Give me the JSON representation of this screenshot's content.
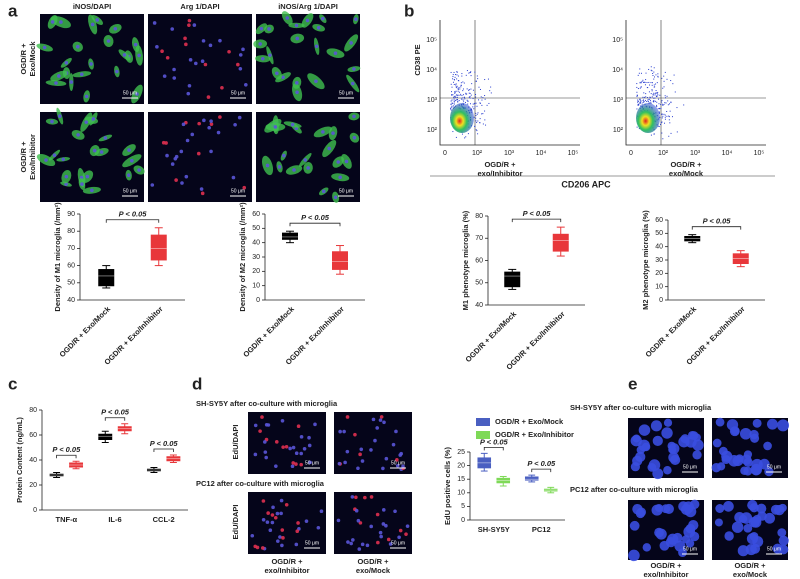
{
  "panels": {
    "a": {
      "label": "a",
      "columns": [
        "iNOS/DAPI",
        "Arg 1/DAPI",
        "iNOS/Arg 1/DAPI"
      ],
      "rows": [
        [
          "OGD/R +",
          "Exo/Mock"
        ],
        [
          "OGD/R +",
          "Exo/Inhibitor"
        ]
      ]
    },
    "b": {
      "label": "b",
      "y_axis": "CD38 PE",
      "x_axis": "CD206 APC",
      "xticks": [
        "0",
        "10²",
        "10³",
        "10⁴",
        "10⁵"
      ],
      "yticks": [
        "10²",
        "10³",
        "10⁴",
        "10⁵"
      ],
      "plots": [
        [
          "OGD/R +",
          "exo/Inhibitor"
        ],
        [
          "OGD/R +",
          "exo/Mock"
        ]
      ]
    },
    "c": {
      "label": "c"
    },
    "d": {
      "label": "d",
      "rows": [
        "SH-SY5Y after co-culture with microglia",
        "PC12 after co-culture with microglia"
      ],
      "stain": "EdU/DAPI",
      "columns": [
        [
          "OGD/R +",
          "exo/Inhibitor"
        ],
        [
          "OGD/R +",
          "exo/Mock"
        ]
      ]
    },
    "e": {
      "label": "e",
      "rows": [
        "SH-SY5Y after co-culture with microglia",
        "PC12 after co-culture with microglia"
      ],
      "columns": [
        [
          "OGD/R +",
          "exo/Inhibitor"
        ],
        [
          "OGD/R +",
          "exo/Mock"
        ]
      ]
    },
    "scale_bar": "50 μm"
  },
  "chart_data": [
    {
      "type": "box",
      "ylabel": "Density of M1 microglia (/mm²)",
      "ylim": [
        40,
        90
      ],
      "yticks": [
        40,
        50,
        60,
        70,
        80,
        90
      ],
      "categories": [
        "OGD/R + Exo/Mock",
        "OGD/R + Exo/Inhibitor"
      ],
      "annotations": [
        "P < 0.05"
      ],
      "series": [
        {
          "colors": [
            "#000000",
            "#e8373a"
          ],
          "values": [
            {
              "min": 47,
              "q1": 48,
              "median": 54,
              "q3": 58,
              "max": 60
            },
            {
              "min": 60,
              "q1": 63,
              "median": 70,
              "q3": 78,
              "max": 82
            }
          ]
        }
      ]
    },
    {
      "type": "box",
      "ylabel": "Density of M2 microglia (/mm²)",
      "ylim": [
        0,
        60
      ],
      "yticks": [
        0,
        10,
        20,
        30,
        40,
        50,
        60
      ],
      "categories": [
        "OGD/R + Exo/Mock",
        "OGD/R + Exo/Inhibitor"
      ],
      "annotations": [
        "P < 0.05"
      ],
      "series": [
        {
          "colors": [
            "#000000",
            "#e8373a"
          ],
          "values": [
            {
              "min": 40,
              "q1": 42,
              "median": 44,
              "q3": 47,
              "max": 48
            },
            {
              "min": 18,
              "q1": 21,
              "median": 27,
              "q3": 34,
              "max": 38
            }
          ]
        }
      ]
    },
    {
      "type": "box",
      "ylabel": "M1 phenotype microglia (%)",
      "ylim": [
        40,
        80
      ],
      "yticks": [
        40,
        50,
        60,
        70,
        80
      ],
      "categories": [
        "OGD/R + Exo/Mock",
        "OGD/R + Exo/Inhibitor"
      ],
      "annotations": [
        "P < 0.05"
      ],
      "series": [
        {
          "colors": [
            "#000000",
            "#e8373a"
          ],
          "values": [
            {
              "min": 47,
              "q1": 48,
              "median": 53,
              "q3": 55,
              "max": 56
            },
            {
              "min": 62,
              "q1": 64,
              "median": 69,
              "q3": 72,
              "max": 75
            }
          ]
        }
      ]
    },
    {
      "type": "box",
      "ylabel": "M2 phenotype microglia (%)",
      "ylim": [
        0,
        60
      ],
      "yticks": [
        0,
        10,
        20,
        30,
        40,
        50,
        60
      ],
      "categories": [
        "OGD/R + Exo/Mock",
        "OGD/R + Exo/Inhibitor"
      ],
      "annotations": [
        "P < 0.05"
      ],
      "series": [
        {
          "colors": [
            "#000000",
            "#e8373a"
          ],
          "values": [
            {
              "min": 43,
              "q1": 44,
              "median": 46,
              "q3": 48,
              "max": 49
            },
            {
              "min": 25,
              "q1": 27,
              "median": 31,
              "q3": 35,
              "max": 37
            }
          ]
        }
      ]
    },
    {
      "type": "box",
      "ylabel": "Protein Content (ng/mL)",
      "ylim": [
        0,
        80
      ],
      "yticks": [
        0,
        20,
        40,
        60,
        80
      ],
      "categories": [
        "TNF-α",
        "IL-6",
        "CCL-2"
      ],
      "annotations": [
        "P < 0.05",
        "P < 0.05",
        "P < 0.05"
      ],
      "series": [
        {
          "color": "#000000",
          "values": [
            {
              "min": 26,
              "q1": 27,
              "median": 28,
              "q3": 29,
              "max": 30
            },
            {
              "min": 54,
              "q1": 56,
              "median": 59,
              "q3": 61,
              "max": 63
            },
            {
              "min": 30,
              "q1": 31,
              "median": 32,
              "q3": 33,
              "max": 34
            }
          ]
        },
        {
          "color": "#e8373a",
          "values": [
            {
              "min": 33,
              "q1": 34,
              "median": 36,
              "q3": 38,
              "max": 39
            },
            {
              "min": 61,
              "q1": 63,
              "median": 65,
              "q3": 67,
              "max": 69
            },
            {
              "min": 38,
              "q1": 39,
              "median": 41,
              "q3": 43,
              "max": 44
            }
          ]
        }
      ]
    },
    {
      "type": "box",
      "ylabel": "EdU positive cells (%)",
      "ylim": [
        0,
        25
      ],
      "yticks": [
        0,
        5,
        10,
        15,
        20,
        25
      ],
      "categories": [
        "SH-SY5Y",
        "PC12"
      ],
      "annotations": [
        "P < 0.05",
        "P < 0.05"
      ],
      "legend": "top",
      "series": [
        {
          "name": "OGD/R + Exo/Mock",
          "color": "#4a5fc1",
          "values": [
            {
              "min": 18,
              "q1": 19,
              "median": 21,
              "q3": 23,
              "max": 24.5
            },
            {
              "min": 14,
              "q1": 14.5,
              "median": 15,
              "q3": 16,
              "max": 16.5
            }
          ]
        },
        {
          "name": "OGD/R + Exo/Inhibitor",
          "color": "#7ed957",
          "values": [
            {
              "min": 12.5,
              "q1": 13.5,
              "median": 14.5,
              "q3": 15.5,
              "max": 16
            },
            {
              "min": 10,
              "q1": 10.5,
              "median": 11,
              "q3": 11.5,
              "max": 12
            }
          ]
        }
      ]
    }
  ]
}
